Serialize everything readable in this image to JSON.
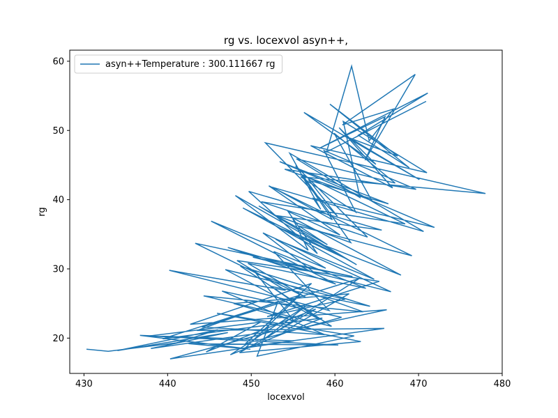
{
  "chart_data": {
    "type": "line",
    "title": "rg vs. locexvol asyn++,",
    "xlabel": "locexvol",
    "ylabel": "rg",
    "xlim": [
      428.3,
      480.0
    ],
    "ylim": [
      14.9,
      61.6
    ],
    "xticks": [
      "430",
      "440",
      "450",
      "460",
      "470",
      "480"
    ],
    "yticks": [
      "20",
      "30",
      "40",
      "50",
      "60"
    ],
    "grid": false,
    "legend_position": "top-left",
    "series_color": "#1f77b4",
    "series": [
      {
        "name": "asyn++Temperature : 300.111667 rg",
        "x": [
          430.3,
          432.9,
          441.0,
          446.0,
          434.0,
          447.2,
          438.0,
          452.6,
          440.3,
          455.1,
          436.7,
          449.9,
          442.5,
          460.4,
          437.8,
          451.1,
          444.6,
          457.7,
          448.6,
          463.1,
          445.9,
          462.3,
          450.7,
          453.2,
          443.5,
          465.9,
          449.4,
          455.8,
          439.4,
          458.5,
          447.5,
          456.6,
          451.5,
          462.9,
          444.1,
          458.8,
          446.5,
          460.8,
          449.3,
          457.2,
          442.7,
          466.2,
          453.8,
          461.7,
          447.9,
          455.1,
          450.6,
          463.4,
          444.3,
          459.6,
          448.7,
          464.2,
          452.3,
          458.0,
          446.9,
          461.2,
          451.9,
          465.3,
          448.3,
          454.1,
          440.2,
          459.3,
          452.7,
          463.7,
          449.6,
          456.5,
          443.3,
          462.1,
          450.2,
          466.7,
          451.4,
          457.5,
          447.2,
          460.1,
          445.2,
          458.9,
          452.9,
          464.7,
          449.0,
          461.5,
          453.6,
          467.9,
          454.9,
          456.8,
          448.1,
          462.6,
          450.9,
          459.1,
          455.7,
          469.2,
          452.1,
          460.6,
          454.4,
          457.9,
          449.7,
          465.6,
          453.0,
          461.9,
          456.1,
          468.4,
          451.2,
          463.9,
          455.3,
          459.7,
          452.5,
          470.6,
          454.6,
          458.3,
          457.4,
          471.9,
          453.4,
          466.4,
          456.9,
          460.3,
          451.7,
          478.0,
          455.9,
          462.5,
          458.7,
          469.7,
          454.0,
          464.4,
          459.9,
          467.2,
          455.4,
          463.0,
          461.0,
          471.0,
          457.1,
          466.9,
          460.5,
          464.9,
          456.3,
          470.1,
          461.8,
          467.5,
          459.4,
          468.9,
          462.8,
          471.1,
          458.1,
          466.0,
          463.6,
          469.6,
          460.9,
          467.0,
          464.1,
          462.0,
          459.0,
          470.9
        ],
        "y": [
          18.4,
          18.1,
          19.3,
          21.2,
          18.2,
          20.8,
          18.5,
          21.0,
          17.0,
          19.6,
          20.4,
          18.4,
          19.2,
          19.0,
          20.3,
          22.3,
          18.0,
          24.2,
          17.9,
          19.5,
          23.6,
          20.3,
          17.4,
          25.3,
          21.1,
          21.4,
          18.7,
          26.2,
          19.9,
          22.9,
          17.6,
          24.7,
          19.8,
          28.6,
          21.6,
          20.5,
          26.8,
          23.0,
          19.2,
          27.9,
          22.0,
          24.1,
          20.9,
          26.4,
          25.0,
          22.5,
          29.3,
          23.8,
          26.1,
          21.7,
          30.4,
          24.6,
          27.5,
          22.8,
          29.9,
          25.6,
          23.1,
          28.2,
          31.2,
          26.9,
          29.8,
          24.0,
          32.5,
          27.2,
          30.8,
          25.9,
          33.7,
          28.9,
          31.7,
          26.7,
          35.2,
          29.5,
          33.1,
          27.8,
          36.9,
          30.1,
          34.3,
          28.5,
          38.8,
          31.4,
          35.8,
          29.1,
          37.4,
          32.7,
          40.6,
          30.6,
          39.1,
          33.5,
          36.2,
          31.9,
          42.0,
          34.9,
          38.3,
          32.2,
          41.2,
          35.6,
          37.7,
          33.8,
          43.6,
          36.5,
          39.7,
          34.6,
          44.9,
          37.1,
          41.8,
          35.4,
          46.7,
          38.6,
          40.2,
          36.0,
          45.5,
          39.4,
          42.8,
          37.6,
          48.2,
          40.9,
          43.3,
          38.2,
          47.1,
          41.5,
          44.4,
          39.9,
          49.6,
          42.4,
          45.9,
          40.3,
          51.3,
          43.9,
          47.8,
          41.7,
          50.4,
          45.1,
          52.6,
          42.9,
          48.9,
          46.3,
          53.8,
          44.6,
          49.3,
          55.4,
          47.4,
          52.0,
          45.7,
          58.1,
          50.8,
          53.1,
          48.5,
          59.3,
          46.9,
          54.2
        ]
      }
    ]
  }
}
